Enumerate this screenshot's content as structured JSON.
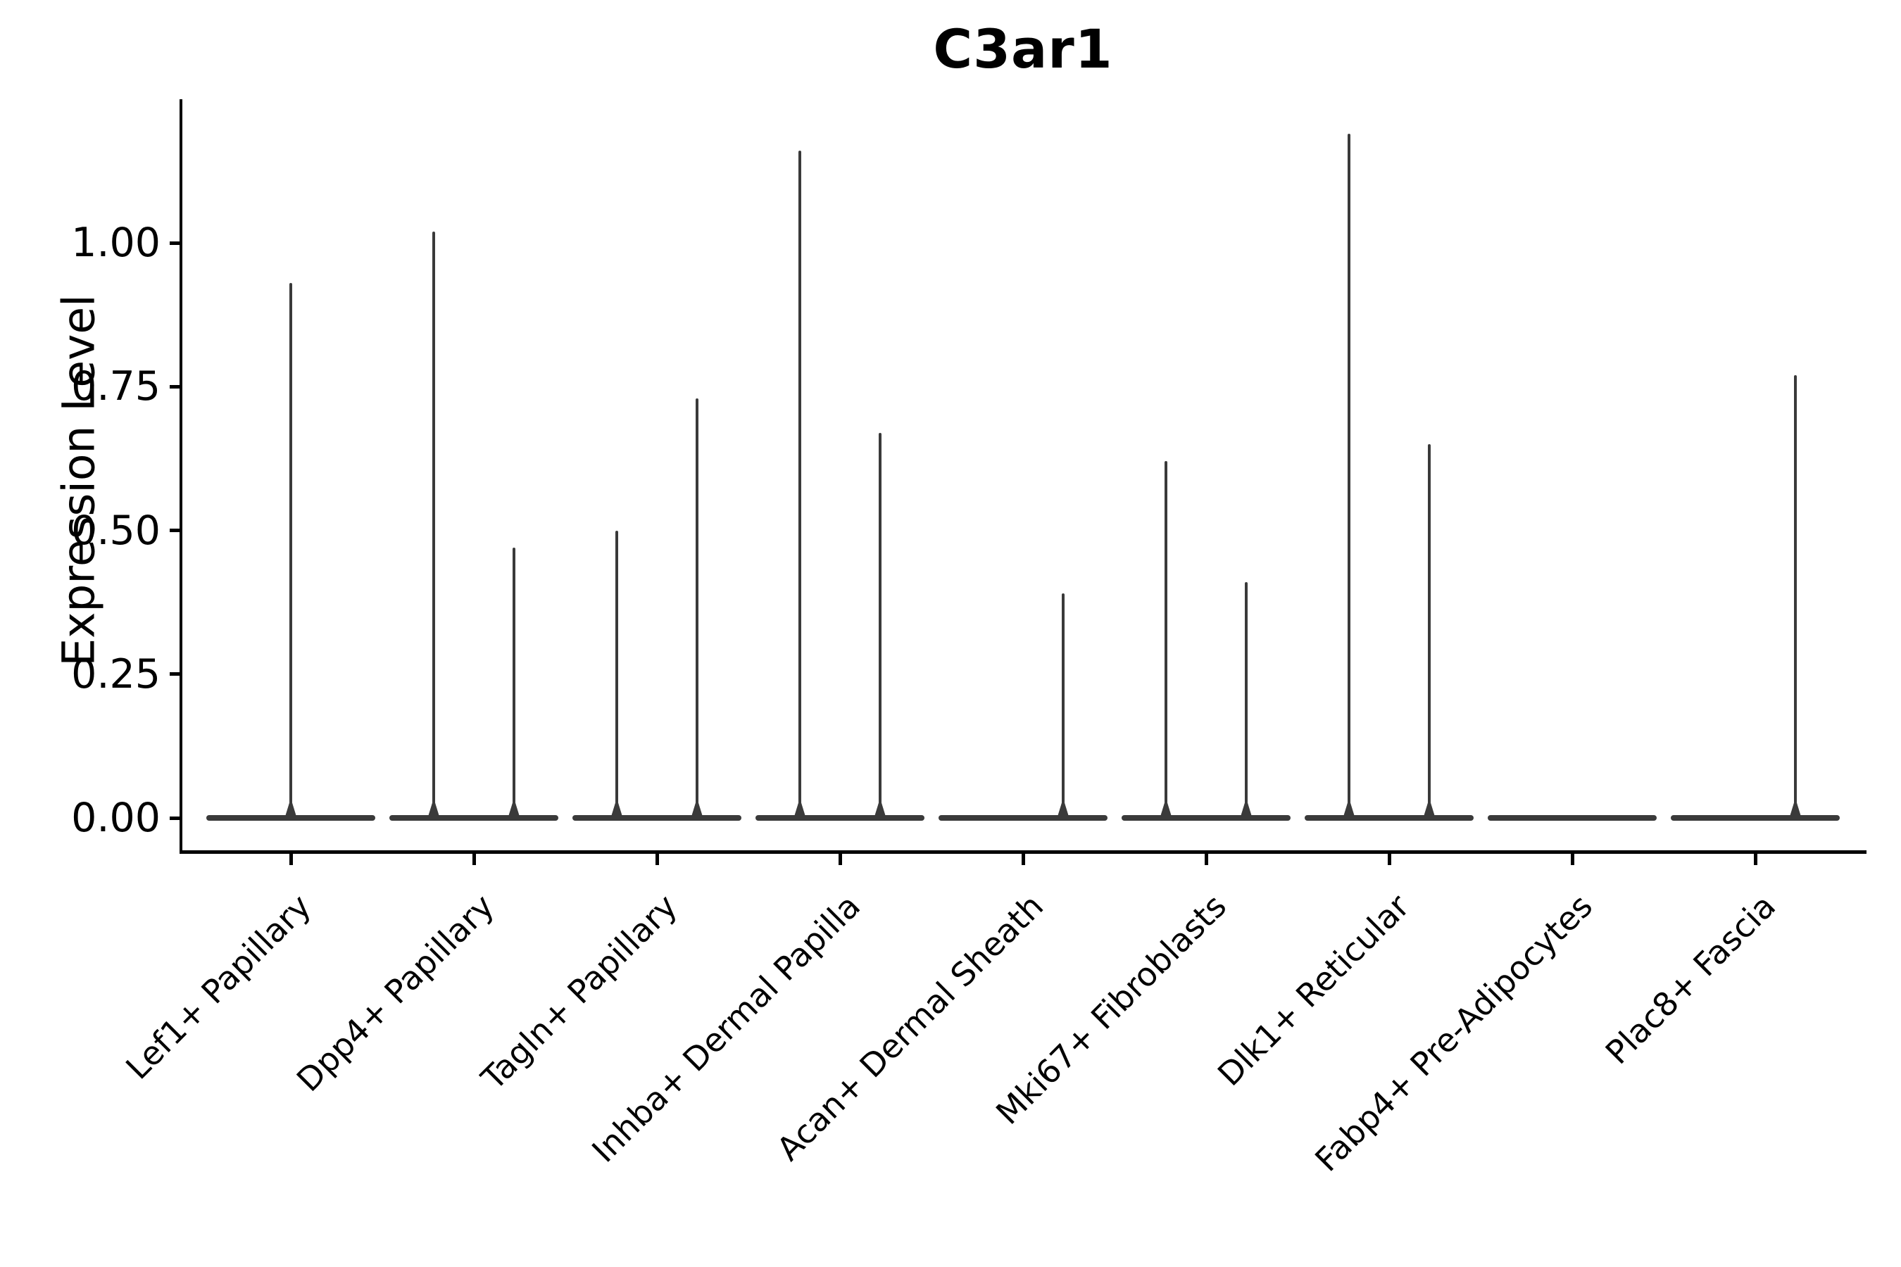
{
  "chart_data": {
    "type": "violin",
    "title": "C3ar1",
    "xlabel": "",
    "ylabel": "Expression Level",
    "ylim": [
      0,
      1.25
    ],
    "grid": false,
    "legend": "none",
    "yticks": [
      {
        "value": 0.0,
        "label": "0.00"
      },
      {
        "value": 0.25,
        "label": "0.25"
      },
      {
        "value": 0.5,
        "label": "0.50"
      },
      {
        "value": 0.75,
        "label": "0.75"
      },
      {
        "value": 1.0,
        "label": "1.00"
      }
    ],
    "categories": [
      "Lef1+ Papillary",
      "Dpp4+ Papillary",
      "Tagln+ Papillary",
      "Inhba+ Dermal Papilla",
      "Acan+ Dermal Sheath",
      "Mki67+ Fibroblasts",
      "Dlk1+ Reticular",
      "Fabp4+ Pre-Adipocytes",
      "Plac8+ Fascia"
    ],
    "violins": [
      {
        "category": "Lef1+ Papillary",
        "base_value": 0,
        "spikes": [
          {
            "offset": 0.0,
            "max": 0.93
          }
        ]
      },
      {
        "category": "Dpp4+ Papillary",
        "base_value": 0,
        "spikes": [
          {
            "offset": -0.22,
            "max": 1.02
          },
          {
            "offset": 0.22,
            "max": 0.47
          }
        ]
      },
      {
        "category": "Tagln+ Papillary",
        "base_value": 0,
        "spikes": [
          {
            "offset": -0.22,
            "max": 0.5
          },
          {
            "offset": 0.22,
            "max": 0.73
          }
        ]
      },
      {
        "category": "Inhba+ Dermal Papilla",
        "base_value": 0,
        "spikes": [
          {
            "offset": -0.22,
            "max": 1.16
          },
          {
            "offset": 0.22,
            "max": 0.67
          }
        ]
      },
      {
        "category": "Acan+ Dermal Sheath",
        "base_value": 0,
        "spikes": [
          {
            "offset": 0.22,
            "max": 0.39
          }
        ]
      },
      {
        "category": "Mki67+ Fibroblasts",
        "base_value": 0,
        "spikes": [
          {
            "offset": -0.22,
            "max": 0.62
          },
          {
            "offset": 0.22,
            "max": 0.41
          }
        ]
      },
      {
        "category": "Dlk1+ Reticular",
        "base_value": 0,
        "spikes": [
          {
            "offset": -0.22,
            "max": 1.19
          },
          {
            "offset": 0.22,
            "max": 0.65
          }
        ]
      },
      {
        "category": "Fabp4+ Pre-Adipocytes",
        "base_value": 0,
        "spikes": []
      },
      {
        "category": "Plac8+ Fascia",
        "base_value": 0,
        "spikes": [
          {
            "offset": 0.22,
            "max": 0.77
          }
        ]
      }
    ],
    "colors": {
      "violin": "#3a3a3a",
      "axis": "#000000",
      "text": "#000000",
      "background": "#ffffff"
    }
  }
}
